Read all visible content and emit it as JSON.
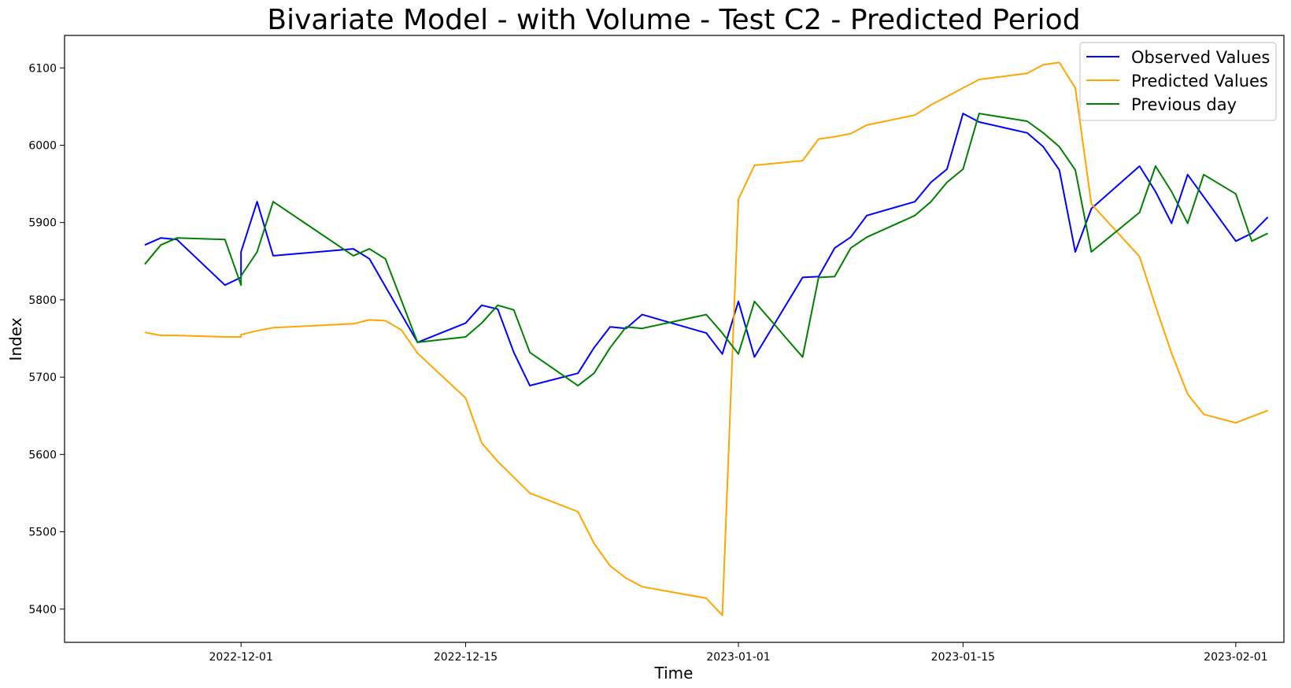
{
  "chart_data": {
    "type": "line",
    "title": "Bivariate Model - with Volume - Test C2 - Predicted Period",
    "xlabel": "Time",
    "ylabel": "Index",
    "xlim": [
      "2022-11-20",
      "2023-02-04"
    ],
    "ylim": [
      5357,
      6142
    ],
    "x_ticks": [
      {
        "date": "2022-12-01",
        "label": "2022-12-01"
      },
      {
        "date": "2022-12-15",
        "label": "2022-12-15"
      },
      {
        "date": "2023-01-01",
        "label": "2023-01-01"
      },
      {
        "date": "2023-01-15",
        "label": "2023-01-15"
      },
      {
        "date": "2023-02-01",
        "label": "2023-02-01"
      }
    ],
    "y_ticks": [
      5400,
      5500,
      5600,
      5700,
      5800,
      5900,
      6000,
      6100
    ],
    "grid": false,
    "legend_position": "top-right",
    "series": [
      {
        "name": "Observed Values",
        "color": "#0000ff",
        "points": [
          [
            "2022-11-25",
            5871
          ],
          [
            "2022-11-26",
            5880
          ],
          [
            "2022-11-27",
            5878
          ],
          [
            "2022-11-30",
            5819
          ],
          [
            "2022-12-01",
            5829
          ],
          [
            "2022-12-01",
            5862
          ],
          [
            "2022-12-02",
            5927
          ],
          [
            "2022-12-03",
            5857
          ],
          [
            "2022-12-08",
            5866
          ],
          [
            "2022-12-09",
            5853
          ],
          [
            "2022-12-12",
            5745
          ],
          [
            "2022-12-15",
            5770
          ],
          [
            "2022-12-16",
            5793
          ],
          [
            "2022-12-17",
            5788
          ],
          [
            "2022-12-18",
            5732
          ],
          [
            "2022-12-19",
            5689
          ],
          [
            "2022-12-22",
            5705
          ],
          [
            "2022-12-23",
            5738
          ],
          [
            "2022-12-24",
            5765
          ],
          [
            "2022-12-25",
            5763
          ],
          [
            "2022-12-26",
            5781
          ],
          [
            "2022-12-30",
            5757
          ],
          [
            "2022-12-31",
            5730
          ],
          [
            "2023-01-01",
            5798
          ],
          [
            "2023-01-02",
            5726
          ],
          [
            "2023-01-05",
            5829
          ],
          [
            "2023-01-06",
            5830
          ],
          [
            "2023-01-07",
            5867
          ],
          [
            "2023-01-08",
            5881
          ],
          [
            "2023-01-09",
            5909
          ],
          [
            "2023-01-12",
            5927
          ],
          [
            "2023-01-13",
            5952
          ],
          [
            "2023-01-14",
            5969
          ],
          [
            "2023-01-15",
            6041
          ],
          [
            "2023-01-16",
            6030
          ],
          [
            "2023-01-19",
            6016
          ],
          [
            "2023-01-20",
            5998
          ],
          [
            "2023-01-21",
            5968
          ],
          [
            "2023-01-22",
            5862
          ],
          [
            "2023-01-23",
            5918
          ],
          [
            "2023-01-26",
            5973
          ],
          [
            "2023-01-27",
            5940
          ],
          [
            "2023-01-28",
            5899
          ],
          [
            "2023-01-29",
            5962
          ],
          [
            "2023-02-01",
            5876
          ],
          [
            "2023-02-02",
            5886
          ],
          [
            "2023-02-03",
            5907
          ]
        ]
      },
      {
        "name": "Predicted Values",
        "color": "#ffa500",
        "points": [
          [
            "2022-11-25",
            5758
          ],
          [
            "2022-11-26",
            5754
          ],
          [
            "2022-11-27",
            5754
          ],
          [
            "2022-11-30",
            5752
          ],
          [
            "2022-12-01",
            5752
          ],
          [
            "2022-12-01",
            5755
          ],
          [
            "2022-12-02",
            5760
          ],
          [
            "2022-12-03",
            5764
          ],
          [
            "2022-12-08",
            5769
          ],
          [
            "2022-12-09",
            5774
          ],
          [
            "2022-12-10",
            5773
          ],
          [
            "2022-12-11",
            5761
          ],
          [
            "2022-12-12",
            5731
          ],
          [
            "2022-12-15",
            5673
          ],
          [
            "2022-12-16",
            5615
          ],
          [
            "2022-12-17",
            5591
          ],
          [
            "2022-12-19",
            5550
          ],
          [
            "2022-12-22",
            5526
          ],
          [
            "2022-12-23",
            5485
          ],
          [
            "2022-12-24",
            5456
          ],
          [
            "2022-12-25",
            5440
          ],
          [
            "2022-12-26",
            5429
          ],
          [
            "2022-12-30",
            5414
          ],
          [
            "2022-12-31",
            5392
          ],
          [
            "2023-01-01",
            5930
          ],
          [
            "2023-01-02",
            5974
          ],
          [
            "2023-01-05",
            5980
          ],
          [
            "2023-01-06",
            6008
          ],
          [
            "2023-01-07",
            6011
          ],
          [
            "2023-01-08",
            6015
          ],
          [
            "2023-01-09",
            6026
          ],
          [
            "2023-01-12",
            6039
          ],
          [
            "2023-01-13",
            6052
          ],
          [
            "2023-01-14",
            6063
          ],
          [
            "2023-01-15",
            6074
          ],
          [
            "2023-01-16",
            6085
          ],
          [
            "2023-01-19",
            6093
          ],
          [
            "2023-01-20",
            6104
          ],
          [
            "2023-01-21",
            6107
          ],
          [
            "2023-01-22",
            6074
          ],
          [
            "2023-01-23",
            5924
          ],
          [
            "2023-01-26",
            5856
          ],
          [
            "2023-01-27",
            5792
          ],
          [
            "2023-01-28",
            5731
          ],
          [
            "2023-01-29",
            5678
          ],
          [
            "2023-01-30",
            5652
          ],
          [
            "2023-02-01",
            5641
          ],
          [
            "2023-02-03",
            5657
          ]
        ]
      },
      {
        "name": "Previous day",
        "color": "#008000",
        "points": [
          [
            "2022-11-25",
            5846
          ],
          [
            "2022-11-26",
            5871
          ],
          [
            "2022-11-27",
            5880
          ],
          [
            "2022-11-30",
            5878
          ],
          [
            "2022-12-01",
            5819
          ],
          [
            "2022-12-01",
            5831
          ],
          [
            "2022-12-02",
            5862
          ],
          [
            "2022-12-03",
            5927
          ],
          [
            "2022-12-08",
            5857
          ],
          [
            "2022-12-09",
            5866
          ],
          [
            "2022-12-10",
            5853
          ],
          [
            "2022-12-12",
            5745
          ],
          [
            "2022-12-15",
            5752
          ],
          [
            "2022-12-16",
            5770
          ],
          [
            "2022-12-17",
            5793
          ],
          [
            "2022-12-18",
            5787
          ],
          [
            "2022-12-19",
            5732
          ],
          [
            "2022-12-22",
            5689
          ],
          [
            "2022-12-23",
            5705
          ],
          [
            "2022-12-24",
            5738
          ],
          [
            "2022-12-25",
            5765
          ],
          [
            "2022-12-26",
            5763
          ],
          [
            "2022-12-30",
            5781
          ],
          [
            "2022-12-31",
            5757
          ],
          [
            "2023-01-01",
            5730
          ],
          [
            "2023-01-02",
            5798
          ],
          [
            "2023-01-05",
            5726
          ],
          [
            "2023-01-06",
            5829
          ],
          [
            "2023-01-07",
            5830
          ],
          [
            "2023-01-08",
            5867
          ],
          [
            "2023-01-09",
            5881
          ],
          [
            "2023-01-12",
            5909
          ],
          [
            "2023-01-13",
            5927
          ],
          [
            "2023-01-14",
            5952
          ],
          [
            "2023-01-15",
            5969
          ],
          [
            "2023-01-16",
            6041
          ],
          [
            "2023-01-19",
            6031
          ],
          [
            "2023-01-20",
            6016
          ],
          [
            "2023-01-21",
            5998
          ],
          [
            "2023-01-22",
            5968
          ],
          [
            "2023-01-23",
            5862
          ],
          [
            "2023-01-26",
            5913
          ],
          [
            "2023-01-27",
            5973
          ],
          [
            "2023-01-28",
            5940
          ],
          [
            "2023-01-29",
            5899
          ],
          [
            "2023-01-30",
            5962
          ],
          [
            "2023-02-01",
            5937
          ],
          [
            "2023-02-02",
            5876
          ],
          [
            "2023-02-03",
            5886
          ]
        ]
      }
    ]
  }
}
